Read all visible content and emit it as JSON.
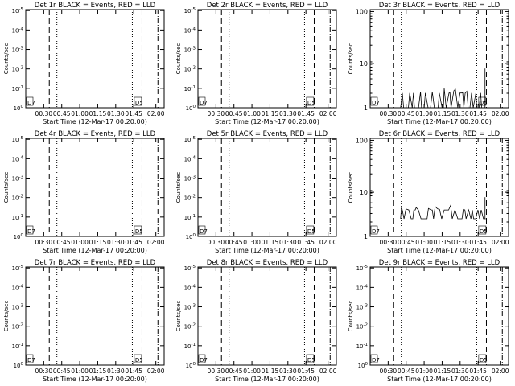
{
  "chart_data": {
    "x_tick_labels": [
      "00:30",
      "00:45",
      "01:00",
      "01:15",
      "01:30",
      "01:45",
      "02:00"
    ],
    "xlabel": "Start Time (12-Mar-17 00:20:00)",
    "ylabel": "Counts/sec",
    "y_tick_labels_log_small": [
      "10^0",
      "10^-1",
      "10^-2",
      "10^-3",
      "10^-4",
      "10^-5"
    ],
    "y_tick_labels_log_large": [
      "1",
      "10",
      "100"
    ],
    "panels": [
      {
        "title": "Det 1r BLACK = Events, RED = LLD",
        "type": "line",
        "yscale": "log-small",
        "events": []
      },
      {
        "title": "Det 2r BLACK = Events, RED = LLD",
        "type": "line",
        "yscale": "log-small",
        "events": []
      },
      {
        "title": "Det 3r BLACK = Events, RED = LLD",
        "type": "line",
        "yscale": "log-large",
        "events": "noisy-low"
      },
      {
        "title": "Det 4r BLACK = Events, RED = LLD",
        "type": "line",
        "yscale": "log-small",
        "events": []
      },
      {
        "title": "Det 5r BLACK = Events, RED = LLD",
        "type": "line",
        "yscale": "log-small",
        "events": []
      },
      {
        "title": "Det 6r BLACK = Events, RED = LLD",
        "type": "line",
        "yscale": "log-large",
        "events": "noisy-mid"
      },
      {
        "title": "Det 7r BLACK = Events, RED = LLD",
        "type": "line",
        "yscale": "log-small",
        "events": []
      },
      {
        "title": "Det 8r BLACK = Events, RED = LLD",
        "type": "line",
        "yscale": "log-small",
        "events": []
      },
      {
        "title": "Det 9r BLACK = Events, RED = LLD",
        "type": "line",
        "yscale": "log-small",
        "events": []
      }
    ],
    "annotation_texts": [
      "D7",
      "D5"
    ]
  }
}
